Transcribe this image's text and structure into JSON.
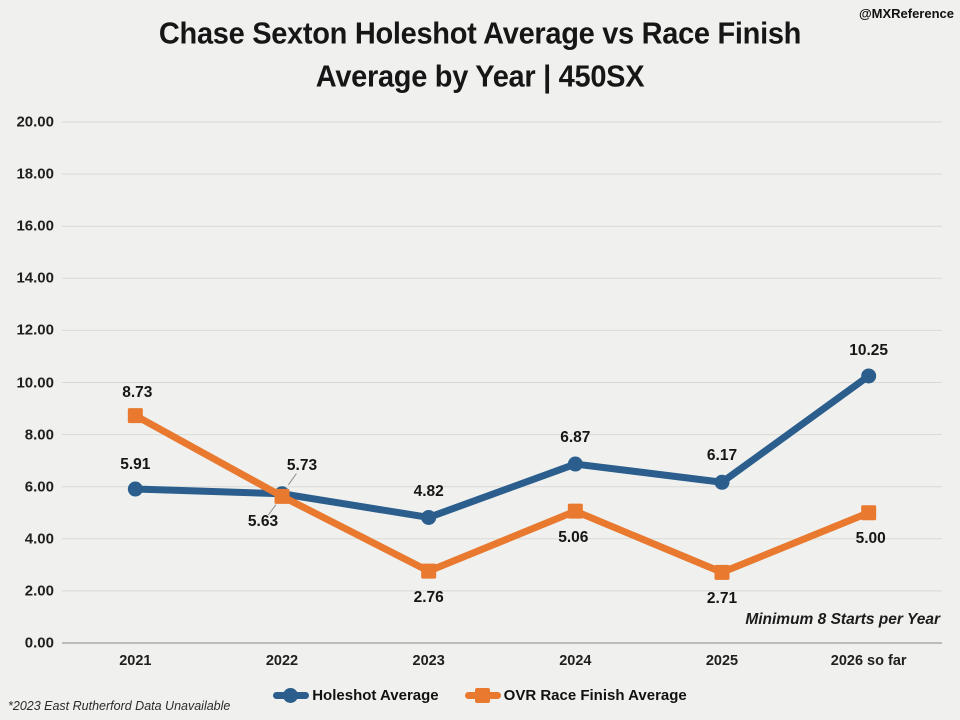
{
  "watermark": "@MXReference",
  "title": {
    "line1": "Chase Sexton Holeshot Average vs Race Finish",
    "line2": "Average by Year | 450SX"
  },
  "annotations": {
    "min_starts": "Minimum 8 Starts per Year",
    "footnote": "*2023 East Rutherford Data Unavailable"
  },
  "colors": {
    "background": "#F0F1EE",
    "gridline": "#D9D9D6",
    "axis_line": "#A9A9A6",
    "holeshot_blue": "#2B5E8D",
    "finish_orange": "#E8792F",
    "leader_line": "#909090",
    "text": "#1b1b1b"
  },
  "chart_data": {
    "type": "line",
    "title": "Chase Sexton Holeshot Average vs Race Finish Average by Year | 450SX",
    "categories": [
      "2021",
      "2022",
      "2023",
      "2024",
      "2025",
      "2026 so far"
    ],
    "series": [
      {
        "name": "Holeshot Average",
        "color": "#2B5E8D",
        "marker": "circle",
        "values": [
          5.91,
          5.73,
          4.82,
          6.87,
          6.17,
          10.25
        ],
        "label_offsets": [
          [
            0,
            -24
          ],
          [
            20,
            -28
          ],
          [
            0,
            -25
          ],
          [
            0,
            -26
          ],
          [
            0,
            -26
          ],
          [
            0,
            -25
          ]
        ],
        "leaders": [
          false,
          true,
          false,
          false,
          false,
          false
        ]
      },
      {
        "name": "OVR Race Finish Average",
        "color": "#E8792F",
        "marker": "square",
        "values": [
          8.73,
          5.63,
          2.76,
          5.06,
          2.71,
          5.0
        ],
        "label_offsets": [
          [
            2,
            -23
          ],
          [
            -19,
            26
          ],
          [
            0,
            27
          ],
          [
            -2,
            27
          ],
          [
            0,
            27
          ],
          [
            2,
            26
          ]
        ],
        "leaders": [
          false,
          true,
          false,
          false,
          false,
          false
        ]
      }
    ],
    "ylim": [
      0,
      20
    ],
    "y_tick_step": 2,
    "y_ticks": [
      "20.00",
      "18.00",
      "16.00",
      "14.00",
      "12.00",
      "10.00",
      "8.00",
      "6.00",
      "4.00",
      "2.00",
      "0.00"
    ],
    "xlabel": "",
    "ylabel": "",
    "grid": true,
    "legend_position": "bottom",
    "value_label_format": "0.00"
  }
}
